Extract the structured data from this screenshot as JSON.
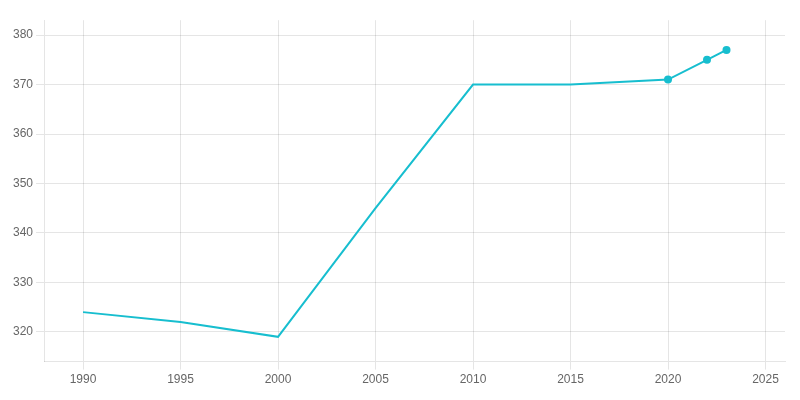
{
  "chart_data": {
    "type": "line",
    "x": [
      1990,
      1995,
      2000,
      2005,
      2010,
      2015,
      2020,
      2022,
      2023
    ],
    "series": [
      {
        "color": "#17BECF",
        "marker": "none",
        "line_style": "solid",
        "values": [
          324,
          322,
          319,
          345,
          370,
          370,
          371,
          375,
          377
        ]
      },
      {
        "color": "#17BECF",
        "marker": "o",
        "line_style": "none",
        "values": [
          null,
          null,
          null,
          null,
          null,
          null,
          371,
          375,
          377
        ]
      }
    ],
    "xlim": [
      1988,
      2026
    ],
    "xticks": [
      1990,
      1995,
      2000,
      2005,
      2010,
      2015,
      2020,
      2025
    ],
    "ylim": [
      314,
      383
    ],
    "yticks": [
      320,
      330,
      340,
      350,
      360,
      370,
      380
    ],
    "grid": true
  }
}
